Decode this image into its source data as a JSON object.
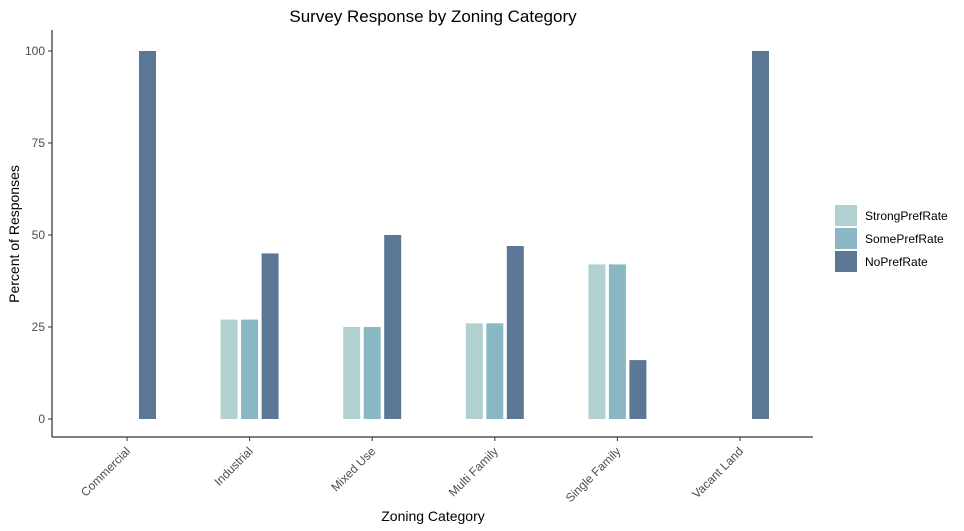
{
  "chart_data": {
    "type": "bar",
    "title": "Survey Response by Zoning Category",
    "xlabel": "Zoning Category",
    "ylabel": "Percent of Responses",
    "ylim": [
      0,
      108
    ],
    "yticks": [
      0,
      25,
      50,
      75,
      100
    ],
    "grid": false,
    "legend_position": "right",
    "categories": [
      "Commercial",
      "Industrial",
      "Mixed Use",
      "Multi Family",
      "Single Family",
      "Vacant Land"
    ],
    "series": [
      {
        "name": "StrongPrefRate",
        "color": "#b0d1d0",
        "values": [
          0,
          27,
          25,
          26,
          42,
          0
        ]
      },
      {
        "name": "SomePrefRate",
        "color": "#89b8c4",
        "values": [
          0,
          27,
          25,
          26,
          42,
          0
        ]
      },
      {
        "name": "NoPrefRate",
        "color": "#5a7895",
        "values": [
          100,
          45,
          50,
          47,
          16,
          100
        ]
      }
    ]
  }
}
